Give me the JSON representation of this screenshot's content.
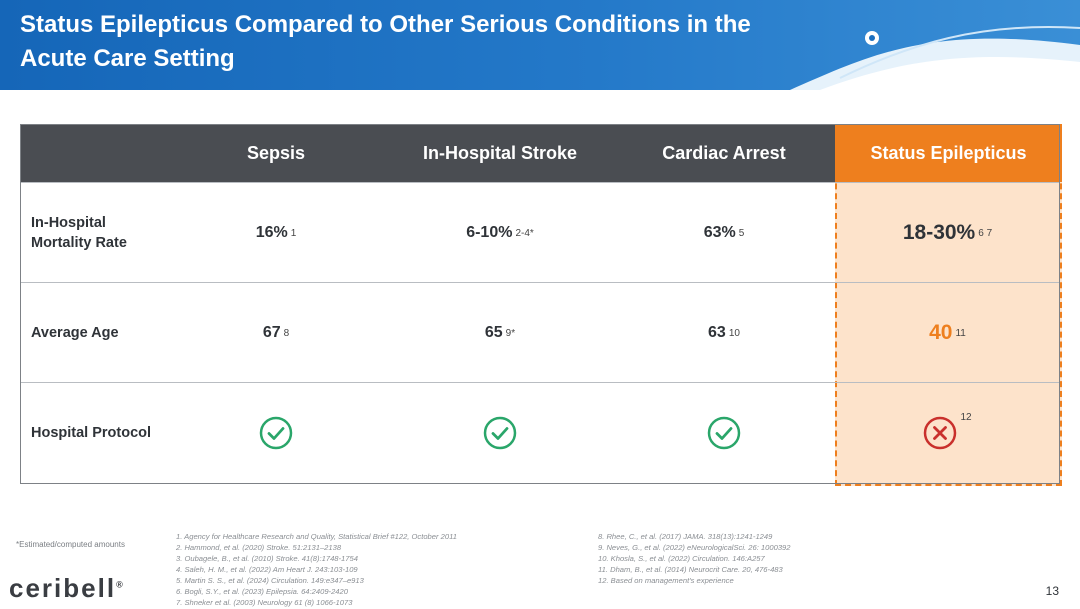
{
  "header": {
    "title": "Status Epilepticus Compared to Other Serious Conditions in the Acute Care Setting"
  },
  "table": {
    "columns": [
      "Sepsis",
      "In-Hospital Stroke",
      "Cardiac Arrest",
      "Status Epilepticus"
    ],
    "rows": [
      {
        "label": "In-Hospital Mortality Rate",
        "cells": [
          {
            "value": "16%",
            "sup": "1"
          },
          {
            "value": "6-10%",
            "sup": "2-4*"
          },
          {
            "value": "63%",
            "sup": "5"
          },
          {
            "value": "18-30%",
            "sup": "6 7"
          }
        ]
      },
      {
        "label": "Average Age",
        "cells": [
          {
            "value": "67",
            "sup": "8"
          },
          {
            "value": "65",
            "sup": "9*"
          },
          {
            "value": "63",
            "sup": "10"
          },
          {
            "value": "40",
            "sup": "11"
          }
        ]
      },
      {
        "label": "Hospital Protocol",
        "cells": [
          {
            "icon": "check-circle-icon"
          },
          {
            "icon": "check-circle-icon"
          },
          {
            "icon": "check-circle-icon"
          },
          {
            "icon": "x-circle-icon",
            "sup": "12"
          }
        ]
      }
    ]
  },
  "colors": {
    "header_bg": "#1a6fc0",
    "table_head": "#4a4d52",
    "accent": "#ee7f1e",
    "highlight_bg": "#fde3cb",
    "check": "#2aa66a",
    "cross": "#c9302c"
  },
  "footnote": "*Estimated/computed amounts",
  "references_left": [
    "1.  Agency for Healthcare Research and Quality, Statistical Brief #122, October 2011",
    "2.  Hammond, et al. (2020) Stroke. 51:2131–2138",
    "3.  Oubagele, B., et al. (2010) Stroke. 41(8):1748-1754",
    "4.  Saleh, H. M., et al. (2022) Am Heart J. 243:103-109",
    "5.  Martin S. S., et al. (2024) Circulation. 149:e347–e913",
    "6.  Bogli, S.Y., et al. (2023) Epilepsia. 64:2409-2420",
    "7.  Shneker et al. (2003) Neurology 61 (8) 1066-1073"
  ],
  "references_right": [
    "8.  Rhee, C., et al. (2017) JAMA. 318(13):1241-1249",
    "9.  Neves, G., et al. (2022) eNeurologicalSci. 26: 1000392",
    "10. Khosla, S., et al. (2022) Circulation. 146:A257",
    "11. Dham, B., et al. (2014) Neurocrit Care. 20, 476-483",
    "12. Based on management's experience"
  ],
  "logo": {
    "text": "ceribell",
    "mark": "®"
  },
  "page_number": "13"
}
